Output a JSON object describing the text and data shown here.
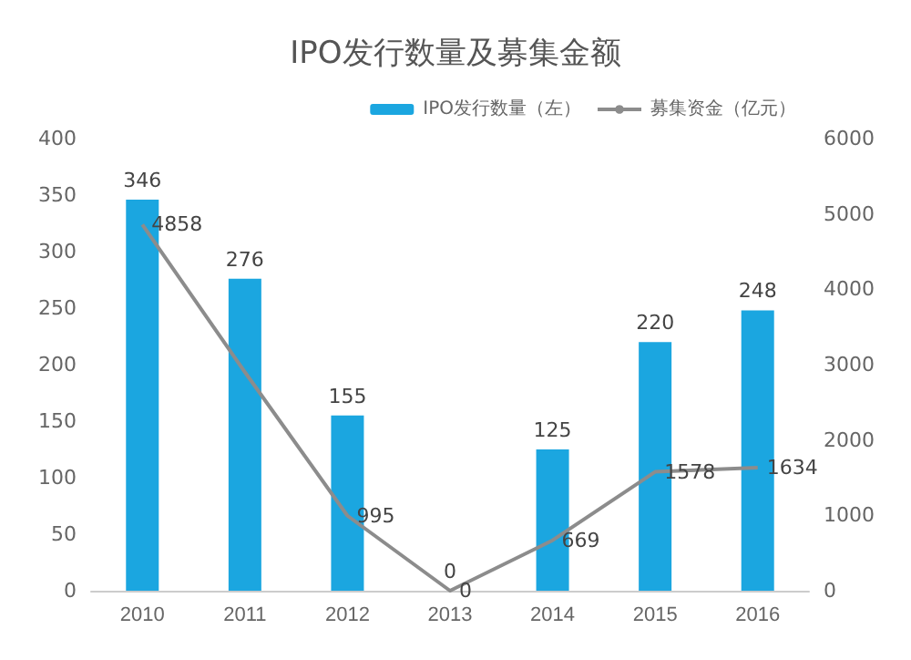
{
  "chart_data": {
    "type": "bar",
    "title": "IPO发行数量及募集金额",
    "categories": [
      "2010",
      "2011",
      "2012",
      "2013",
      "2014",
      "2015",
      "2016"
    ],
    "series": [
      {
        "name": "IPO发行数量（左）",
        "color": "#1ba6e0",
        "values": [
          346,
          276,
          155,
          0,
          125,
          220,
          248
        ],
        "value_labels": [
          "346",
          "276",
          "155",
          "0",
          "125",
          "220",
          "248"
        ]
      },
      {
        "name": "募集资金（亿元）",
        "type": "line",
        "axis": "y2",
        "color": "#8c8c8c",
        "values": [
          4858,
          2900,
          995,
          0,
          669,
          1578,
          1634
        ],
        "value_labels": [
          "4858",
          null,
          "995",
          "0",
          "669",
          "1578",
          "1634"
        ]
      }
    ],
    "ylim": [
      0,
      400
    ],
    "yticks": [
      0,
      50,
      100,
      150,
      200,
      250,
      300,
      350,
      400
    ],
    "y2lim": [
      0,
      6000
    ],
    "y2ticks": [
      0,
      1000,
      2000,
      3000,
      4000,
      5000,
      6000
    ],
    "grid": false,
    "legend": "top right",
    "marker": "none"
  }
}
